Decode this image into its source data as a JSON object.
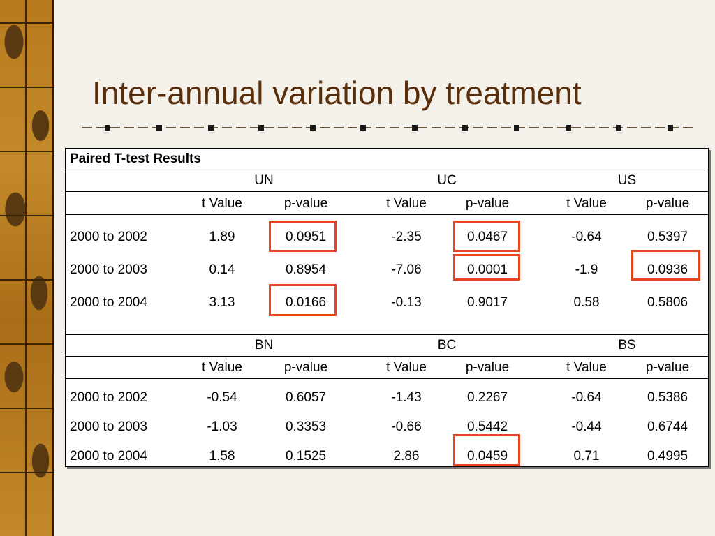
{
  "title": "Inter-annual variation by treatment",
  "table": {
    "heading": "Paired T-test Results",
    "highlight_color": "#e8431a",
    "sections": [
      {
        "groups": [
          "UN",
          "UC",
          "US"
        ],
        "col_labels": [
          "t Value",
          "p-value",
          "t Value",
          "p-value",
          "t Value",
          "p-value"
        ],
        "rows": [
          {
            "label": "2000 to 2002",
            "values": [
              "1.89",
              "0.0951",
              "-2.35",
              "0.0467",
              "-0.64",
              "0.5397"
            ]
          },
          {
            "label": "2000 to 2003",
            "values": [
              "0.14",
              "0.8954",
              "-7.06",
              "0.0001",
              "-1.9",
              "0.0936"
            ]
          },
          {
            "label": "2000 to 2004",
            "values": [
              "3.13",
              "0.0166",
              "-0.13",
              "0.9017",
              "0.58",
              "0.5806"
            ]
          }
        ]
      },
      {
        "groups": [
          "BN",
          "BC",
          "BS"
        ],
        "col_labels": [
          "t Value",
          "p-value",
          "t Value",
          "p-value",
          "t Value",
          "p-value"
        ],
        "rows": [
          {
            "label": "2000 to 2002",
            "values": [
              "-0.54",
              "0.6057",
              "-1.43",
              "0.2267",
              "-0.64",
              "0.5386"
            ]
          },
          {
            "label": "2000 to 2003",
            "values": [
              "-1.03",
              "0.3353",
              "-0.66",
              "0.5442",
              "-0.44",
              "0.6744"
            ]
          },
          {
            "label": "2000 to 2004",
            "values": [
              "1.58",
              "0.1525",
              "2.86",
              "0.0459",
              "0.71",
              "0.4995"
            ]
          }
        ]
      }
    ]
  }
}
